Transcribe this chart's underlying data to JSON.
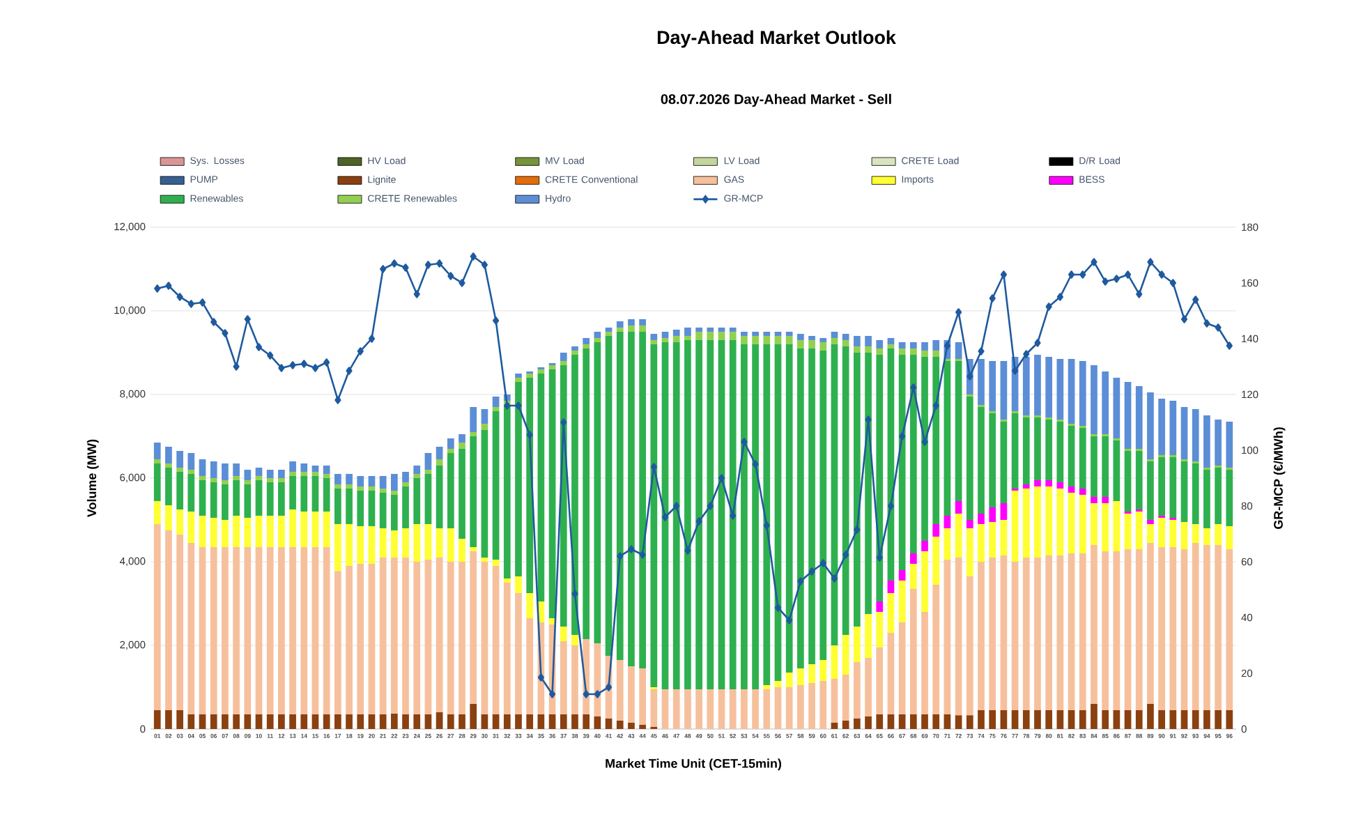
{
  "chart_data": {
    "type": "bar",
    "title": "Day-Ahead Market Outlook",
    "subtitle": "08.07.2026  Day-Ahead Market - Sell",
    "xlabel": "Market Time Unit (CET-15min)",
    "ylabel": "Volume (MW)",
    "y2label": "GR-MCP (€/MWh)",
    "categories": [
      "01",
      "02",
      "03",
      "04",
      "05",
      "06",
      "07",
      "08",
      "09",
      "10",
      "11",
      "12",
      "13",
      "14",
      "15",
      "16",
      "17",
      "18",
      "19",
      "20",
      "21",
      "22",
      "23",
      "24",
      "25",
      "26",
      "27",
      "28",
      "29",
      "30",
      "31",
      "32",
      "33",
      "34",
      "35",
      "36",
      "37",
      "38",
      "39",
      "40",
      "41",
      "42",
      "43",
      "44",
      "45",
      "46",
      "47",
      "48",
      "49",
      "50",
      "51",
      "52",
      "53",
      "54",
      "55",
      "56",
      "57",
      "58",
      "59",
      "60",
      "61",
      "62",
      "63",
      "64",
      "65",
      "66",
      "67",
      "68",
      "69",
      "70",
      "71",
      "72",
      "73",
      "74",
      "75",
      "76",
      "77",
      "78",
      "79",
      "80",
      "81",
      "82",
      "83",
      "84",
      "85",
      "86",
      "87",
      "88",
      "89",
      "90",
      "91",
      "92",
      "93",
      "94",
      "95",
      "96"
    ],
    "stacked": true,
    "grid": "y",
    "legend": "top",
    "ylim": [
      0,
      12000
    ],
    "yticks": [
      0,
      {
        "value": 2000,
        "label": "2,000"
      },
      {
        "value": 4000,
        "label": "4,000"
      },
      {
        "value": 6000,
        "label": "6,000"
      },
      {
        "value": 8000,
        "label": "8,000"
      },
      {
        "value": 10000,
        "label": "10,000"
      },
      {
        "value": 12000,
        "label": "12,000"
      }
    ],
    "y2lim": [
      0,
      180
    ],
    "y2ticks": [
      0,
      20,
      40,
      60,
      80,
      100,
      120,
      140,
      160,
      180
    ],
    "series": [
      {
        "name": "Sys. Losses",
        "color": "#d99694",
        "values": [
          0,
          0,
          0,
          0,
          0,
          0,
          0,
          0,
          0,
          0,
          0,
          0,
          0,
          0,
          0,
          0,
          0,
          0,
          0,
          0,
          0,
          0,
          0,
          0,
          0,
          0,
          0,
          0,
          0,
          0,
          0,
          0,
          0,
          0,
          0,
          0,
          0,
          0,
          0,
          0,
          0,
          0,
          0,
          0,
          0,
          0,
          0,
          0,
          0,
          0,
          0,
          0,
          0,
          0,
          0,
          0,
          0,
          0,
          0,
          0,
          0,
          0,
          0,
          0,
          0,
          0,
          0,
          0,
          0,
          0,
          0,
          0,
          0,
          0,
          0,
          0,
          0,
          0,
          0,
          0,
          0,
          0,
          0,
          0,
          0,
          0,
          0,
          0,
          0,
          0,
          0,
          0,
          0,
          0,
          0,
          0
        ]
      },
      {
        "name": "HV Load",
        "color": "#4f6228",
        "values": [
          0,
          0,
          0,
          0,
          0,
          0,
          0,
          0,
          0,
          0,
          0,
          0,
          0,
          0,
          0,
          0,
          0,
          0,
          0,
          0,
          0,
          0,
          0,
          0,
          0,
          0,
          0,
          0,
          0,
          0,
          0,
          0,
          0,
          0,
          0,
          0,
          0,
          0,
          0,
          0,
          0,
          0,
          0,
          0,
          0,
          0,
          0,
          0,
          0,
          0,
          0,
          0,
          0,
          0,
          0,
          0,
          0,
          0,
          0,
          0,
          0,
          0,
          0,
          0,
          0,
          0,
          0,
          0,
          0,
          0,
          0,
          0,
          0,
          0,
          0,
          0,
          0,
          0,
          0,
          0,
          0,
          0,
          0,
          0,
          0,
          0,
          0,
          0,
          0,
          0,
          0,
          0,
          0,
          0,
          0,
          0
        ]
      },
      {
        "name": "MV Load",
        "color": "#77933c",
        "values": [
          0,
          0,
          0,
          0,
          0,
          0,
          0,
          0,
          0,
          0,
          0,
          0,
          0,
          0,
          0,
          0,
          0,
          0,
          0,
          0,
          0,
          0,
          0,
          0,
          0,
          0,
          0,
          0,
          0,
          0,
          0,
          0,
          0,
          0,
          0,
          0,
          0,
          0,
          0,
          0,
          0,
          0,
          0,
          0,
          0,
          0,
          0,
          0,
          0,
          0,
          0,
          0,
          0,
          0,
          0,
          0,
          0,
          0,
          0,
          0,
          0,
          0,
          0,
          0,
          0,
          0,
          0,
          0,
          0,
          0,
          0,
          0,
          0,
          0,
          0,
          0,
          0,
          0,
          0,
          0,
          0,
          0,
          0,
          0,
          0,
          0,
          0,
          0,
          0,
          0,
          0,
          0,
          0,
          0,
          0,
          0
        ]
      },
      {
        "name": "LV Load",
        "color": "#c3d69b",
        "values": [
          0,
          0,
          0,
          0,
          0,
          0,
          0,
          0,
          0,
          0,
          0,
          0,
          0,
          0,
          0,
          0,
          0,
          0,
          0,
          0,
          0,
          0,
          0,
          0,
          0,
          0,
          0,
          0,
          0,
          0,
          0,
          0,
          0,
          0,
          0,
          0,
          0,
          0,
          0,
          0,
          0,
          0,
          0,
          0,
          0,
          0,
          0,
          0,
          0,
          0,
          0,
          0,
          0,
          0,
          0,
          0,
          0,
          0,
          0,
          0,
          0,
          0,
          0,
          0,
          0,
          0,
          0,
          0,
          0,
          0,
          0,
          0,
          0,
          0,
          0,
          0,
          0,
          0,
          0,
          0,
          0,
          0,
          0,
          0,
          0,
          0,
          0,
          0,
          0,
          0,
          0,
          0,
          0,
          0,
          0,
          0
        ]
      },
      {
        "name": "CRETE Load",
        "color": "#d7e4bd",
        "values": [
          0,
          0,
          0,
          0,
          0,
          0,
          0,
          0,
          0,
          0,
          0,
          0,
          0,
          0,
          0,
          0,
          0,
          0,
          0,
          0,
          0,
          0,
          0,
          0,
          0,
          0,
          0,
          0,
          0,
          0,
          0,
          0,
          0,
          0,
          0,
          0,
          0,
          0,
          0,
          0,
          0,
          0,
          0,
          0,
          0,
          0,
          0,
          0,
          0,
          0,
          0,
          0,
          0,
          0,
          0,
          0,
          0,
          0,
          0,
          0,
          0,
          0,
          0,
          0,
          0,
          0,
          0,
          0,
          0,
          0,
          0,
          0,
          0,
          0,
          0,
          0,
          0,
          0,
          0,
          0,
          0,
          0,
          0,
          0,
          0,
          0,
          0,
          0,
          0,
          0,
          0,
          0,
          0,
          0,
          0,
          0
        ]
      },
      {
        "name": "D/R Load",
        "color": "#000000",
        "values": [
          0,
          0,
          0,
          0,
          0,
          0,
          0,
          0,
          0,
          0,
          0,
          0,
          0,
          0,
          0,
          0,
          0,
          0,
          0,
          0,
          0,
          0,
          0,
          0,
          0,
          0,
          0,
          0,
          0,
          0,
          0,
          0,
          0,
          0,
          0,
          0,
          0,
          0,
          0,
          0,
          0,
          0,
          0,
          0,
          0,
          0,
          0,
          0,
          0,
          0,
          0,
          0,
          0,
          0,
          0,
          0,
          0,
          0,
          0,
          0,
          0,
          0,
          0,
          0,
          0,
          0,
          0,
          0,
          0,
          0,
          0,
          0,
          0,
          0,
          0,
          0,
          0,
          0,
          0,
          0,
          0,
          0,
          0,
          0,
          0,
          0,
          0,
          0,
          0,
          0,
          0,
          0,
          0,
          0,
          0,
          0
        ]
      },
      {
        "name": "PUMP",
        "color": "#376092",
        "values": [
          0,
          0,
          0,
          0,
          0,
          0,
          0,
          0,
          0,
          0,
          0,
          0,
          0,
          0,
          0,
          0,
          0,
          0,
          0,
          0,
          0,
          0,
          0,
          0,
          0,
          0,
          0,
          0,
          0,
          0,
          0,
          0,
          0,
          0,
          0,
          0,
          0,
          0,
          0,
          0,
          0,
          0,
          0,
          0,
          0,
          0,
          0,
          0,
          0,
          0,
          0,
          0,
          0,
          0,
          0,
          0,
          0,
          0,
          0,
          0,
          0,
          0,
          0,
          0,
          0,
          0,
          0,
          0,
          0,
          0,
          0,
          0,
          0,
          0,
          0,
          0,
          0,
          0,
          0,
          0,
          0,
          0,
          0,
          0,
          0,
          0,
          0,
          0,
          0,
          0,
          0,
          0,
          0,
          0,
          0,
          0
        ]
      },
      {
        "name": "Lignite",
        "color": "#8b4010",
        "values": [
          450,
          450,
          450,
          350,
          350,
          350,
          350,
          350,
          350,
          350,
          350,
          350,
          350,
          350,
          350,
          350,
          350,
          350,
          350,
          350,
          350,
          370,
          350,
          350,
          350,
          400,
          350,
          350,
          600,
          350,
          350,
          350,
          350,
          350,
          350,
          350,
          350,
          350,
          350,
          300,
          250,
          200,
          150,
          100,
          50,
          0,
          0,
          0,
          0,
          0,
          0,
          0,
          0,
          0,
          0,
          0,
          0,
          0,
          0,
          0,
          150,
          200,
          250,
          300,
          350,
          350,
          350,
          350,
          350,
          350,
          350,
          330,
          330,
          450,
          450,
          450,
          450,
          450,
          450,
          450,
          450,
          450,
          450,
          600,
          450,
          450,
          450,
          450,
          600,
          450,
          450,
          450,
          450,
          450,
          450,
          450
        ]
      },
      {
        "name": "CRETE Conventional",
        "color": "#e46c0a",
        "values": [
          0,
          0,
          0,
          0,
          0,
          0,
          0,
          0,
          0,
          0,
          0,
          0,
          0,
          0,
          0,
          0,
          0,
          0,
          0,
          0,
          0,
          0,
          0,
          0,
          0,
          0,
          0,
          0,
          0,
          0,
          0,
          0,
          0,
          0,
          0,
          0,
          0,
          0,
          0,
          0,
          0,
          0,
          0,
          0,
          0,
          0,
          0,
          0,
          0,
          0,
          0,
          0,
          0,
          0,
          0,
          0,
          0,
          0,
          0,
          0,
          0,
          0,
          0,
          0,
          0,
          0,
          0,
          0,
          0,
          0,
          0,
          0,
          0,
          0,
          0,
          0,
          0,
          0,
          0,
          0,
          0,
          0,
          0,
          0,
          0,
          0,
          0,
          0,
          0,
          0,
          0,
          0,
          0,
          0,
          0,
          0
        ]
      },
      {
        "name": "GAS",
        "color": "#f6c09c",
        "values": [
          4450,
          4300,
          4200,
          4100,
          4000,
          4000,
          4000,
          4000,
          4000,
          4000,
          4000,
          4000,
          4000,
          4000,
          4000,
          4000,
          3430,
          3550,
          3600,
          3600,
          3750,
          3730,
          3750,
          3650,
          3700,
          3700,
          3650,
          3650,
          3650,
          3650,
          3550,
          3150,
          2900,
          2300,
          2200,
          2150,
          1750,
          1650,
          1800,
          1750,
          1500,
          1450,
          1350,
          1350,
          900,
          950,
          950,
          950,
          950,
          950,
          950,
          950,
          950,
          950,
          950,
          1000,
          1000,
          1050,
          1100,
          1150,
          1050,
          1100,
          1350,
          1400,
          1600,
          1950,
          2200,
          3000,
          2450,
          3100,
          3700,
          3770,
          3320,
          3550,
          3650,
          3700,
          3550,
          3650,
          3650,
          3700,
          3700,
          3750,
          3750,
          3800,
          3800,
          3800,
          3850,
          3850,
          3850,
          3900,
          3900,
          3850,
          4000,
          3950,
          3950,
          3850
        ]
      },
      {
        "name": "Imports",
        "color": "#ffff33",
        "values": [
          550,
          600,
          600,
          750,
          750,
          700,
          650,
          750,
          700,
          750,
          750,
          750,
          900,
          850,
          850,
          850,
          1120,
          1000,
          900,
          900,
          700,
          650,
          700,
          900,
          850,
          700,
          800,
          550,
          100,
          100,
          150,
          100,
          400,
          600,
          500,
          150,
          350,
          250,
          0,
          0,
          0,
          0,
          0,
          0,
          50,
          0,
          0,
          0,
          0,
          0,
          0,
          0,
          0,
          0,
          100,
          150,
          350,
          400,
          450,
          500,
          800,
          950,
          850,
          1050,
          850,
          950,
          1000,
          600,
          1450,
          1150,
          750,
          1050,
          1150,
          900,
          850,
          850,
          1700,
          1650,
          1700,
          1650,
          1600,
          1450,
          1400,
          1000,
          1150,
          1200,
          850,
          900,
          450,
          700,
          650,
          650,
          450,
          400,
          500,
          550
        ]
      },
      {
        "name": "BESS",
        "color": "#ff00ff",
        "values": [
          0,
          0,
          0,
          0,
          0,
          0,
          0,
          0,
          0,
          0,
          0,
          0,
          0,
          0,
          0,
          0,
          0,
          0,
          0,
          0,
          0,
          0,
          0,
          0,
          0,
          0,
          0,
          0,
          0,
          0,
          0,
          0,
          0,
          0,
          0,
          0,
          0,
          0,
          0,
          0,
          0,
          0,
          0,
          0,
          0,
          0,
          0,
          0,
          0,
          0,
          0,
          0,
          0,
          0,
          0,
          0,
          0,
          0,
          0,
          0,
          0,
          0,
          0,
          0,
          250,
          300,
          250,
          250,
          250,
          300,
          300,
          300,
          200,
          250,
          350,
          400,
          50,
          100,
          150,
          150,
          150,
          150,
          150,
          150,
          150,
          0,
          50,
          50,
          100,
          50,
          50,
          0,
          0,
          0,
          0,
          0
        ]
      },
      {
        "name": "Renewables",
        "color": "#2eb04f",
        "values": [
          900,
          900,
          900,
          900,
          850,
          850,
          850,
          850,
          800,
          850,
          800,
          800,
          800,
          850,
          850,
          800,
          850,
          850,
          850,
          850,
          850,
          850,
          1000,
          1100,
          1200,
          1500,
          1800,
          2150,
          2650,
          3050,
          3550,
          4150,
          4650,
          5150,
          5450,
          5950,
          6250,
          6700,
          6950,
          7200,
          7650,
          7850,
          8000,
          8050,
          8200,
          8300,
          8300,
          8350,
          8350,
          8350,
          8350,
          8350,
          8250,
          8250,
          8150,
          8050,
          7850,
          7650,
          7550,
          7400,
          7200,
          6900,
          6550,
          6250,
          5900,
          5550,
          5150,
          4750,
          4400,
          4000,
          3700,
          3350,
          2950,
          2550,
          2250,
          1950,
          1800,
          1600,
          1500,
          1450,
          1450,
          1450,
          1450,
          1450,
          1450,
          1450,
          1450,
          1400,
          1400,
          1400,
          1450,
          1450,
          1450,
          1400,
          1350,
          1350
        ]
      },
      {
        "name": "CRETE Renewables",
        "color": "#92d050",
        "values": [
          100,
          100,
          100,
          100,
          100,
          100,
          100,
          100,
          100,
          100,
          100,
          100,
          100,
          100,
          100,
          100,
          100,
          100,
          100,
          100,
          100,
          100,
          100,
          100,
          100,
          150,
          100,
          150,
          100,
          150,
          100,
          100,
          100,
          100,
          100,
          100,
          100,
          100,
          100,
          100,
          100,
          100,
          150,
          150,
          100,
          100,
          150,
          100,
          200,
          200,
          200,
          200,
          200,
          200,
          200,
          200,
          200,
          200,
          200,
          200,
          150,
          150,
          150,
          150,
          150,
          100,
          150,
          150,
          150,
          150,
          50,
          50,
          50,
          50,
          50,
          50,
          50,
          50,
          50,
          50,
          50,
          50,
          50,
          50,
          50,
          50,
          50,
          50,
          50,
          50,
          50,
          50,
          50,
          50,
          50,
          50
        ]
      },
      {
        "name": "Hydro",
        "color": "#5b8ed6",
        "values": [
          400,
          400,
          400,
          400,
          400,
          400,
          400,
          300,
          250,
          200,
          200,
          200,
          250,
          200,
          150,
          200,
          250,
          250,
          250,
          250,
          300,
          400,
          250,
          200,
          400,
          300,
          250,
          200,
          600,
          350,
          250,
          150,
          100,
          50,
          50,
          50,
          200,
          100,
          150,
          150,
          100,
          150,
          150,
          150,
          150,
          150,
          150,
          200,
          100,
          100,
          100,
          100,
          100,
          100,
          100,
          100,
          100,
          150,
          100,
          100,
          150,
          150,
          250,
          250,
          200,
          150,
          150,
          150,
          200,
          250,
          450,
          400,
          850,
          1100,
          1200,
          1400,
          1300,
          1400,
          1450,
          1450,
          1450,
          1550,
          1550,
          1650,
          1500,
          1450,
          1600,
          1500,
          1600,
          1350,
          1300,
          1250,
          1250,
          1250,
          1100,
          1100
        ]
      },
      {
        "name": "GR-MCP",
        "type": "line",
        "axis": "y2",
        "marker": "diamond",
        "line_style": "solid",
        "color": "#1f5a9e",
        "values": [
          158,
          159,
          155,
          152.5,
          153,
          146,
          142,
          130,
          147,
          137,
          134,
          129.5,
          130.5,
          131,
          129.5,
          131.5,
          118,
          128.5,
          135.5,
          140,
          165,
          167,
          165.5,
          156,
          166.5,
          167,
          162.5,
          160,
          169.5,
          166.5,
          146.5,
          116,
          116,
          105.5,
          18.5,
          12.5,
          110,
          48.5,
          12.5,
          12.5,
          15,
          62,
          64.5,
          62.5,
          94,
          76,
          80,
          64,
          74.5,
          80,
          90,
          76.5,
          103,
          95,
          73,
          43.5,
          39,
          53,
          56.5,
          59.5,
          54,
          62.5,
          71.5,
          111,
          61.5,
          80,
          105,
          122.5,
          103,
          116,
          137.5,
          149.5,
          126.5,
          135.5,
          154.5,
          163,
          128.5,
          134.5,
          138.5,
          151.5,
          155,
          163,
          163,
          167.5,
          160.5,
          161.5,
          163,
          156,
          167.5,
          163,
          160,
          147,
          154,
          145.5,
          144,
          137.5
        ]
      }
    ]
  }
}
